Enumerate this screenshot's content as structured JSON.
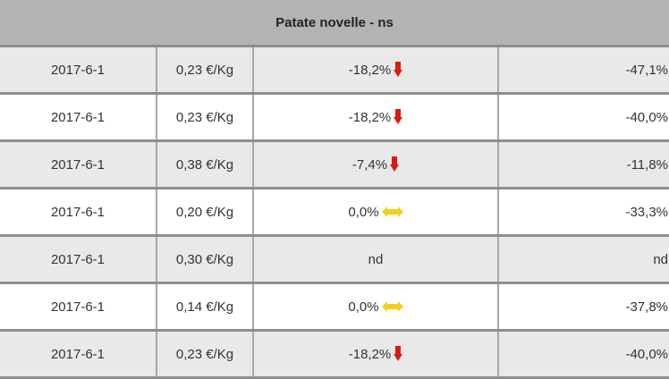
{
  "table": {
    "title": "Patate novelle - ns",
    "colors": {
      "header_bg": "#b3b3b3",
      "down_arrow": "#d81c10",
      "stable_arrow": "#f2cf1c"
    },
    "rows": [
      {
        "date": "2017-6-1",
        "price": "0,23 €/Kg",
        "change": "-18,2%",
        "trend": "down",
        "change2": "-47,1%"
      },
      {
        "date": "2017-6-1",
        "price": "0,23 €/Kg",
        "change": "-18,2%",
        "trend": "down",
        "change2": "-40,0%"
      },
      {
        "date": "2017-6-1",
        "price": "0,38 €/Kg",
        "change": "-7,4%",
        "trend": "down",
        "change2": "-11,8%"
      },
      {
        "date": "2017-6-1",
        "price": "0,20 €/Kg",
        "change": "0,0%",
        "trend": "stable",
        "change2": "-33,3%"
      },
      {
        "date": "2017-6-1",
        "price": "0,30 €/Kg",
        "change": "nd",
        "trend": "none",
        "change2": "nd"
      },
      {
        "date": "2017-6-1",
        "price": "0,14 €/Kg",
        "change": "0,0%",
        "trend": "stable",
        "change2": "-37,8%"
      },
      {
        "date": "2017-6-1",
        "price": "0,23 €/Kg",
        "change": "-18,2%",
        "trend": "down",
        "change2": "-40,0%"
      }
    ]
  }
}
